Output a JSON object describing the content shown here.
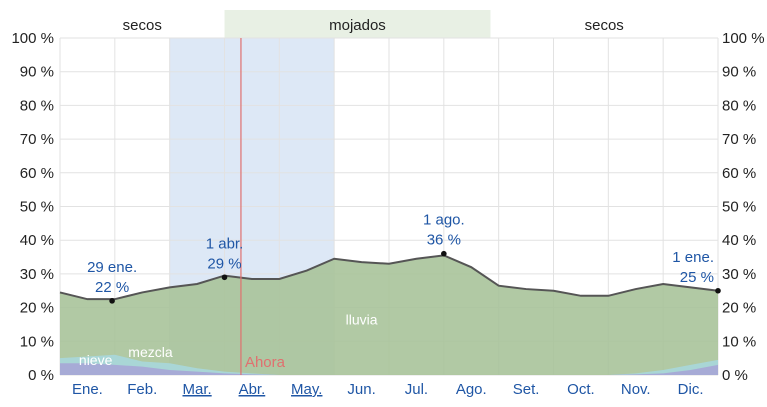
{
  "chart_data": {
    "type": "area",
    "y_unit": "%",
    "ylim": [
      0,
      100
    ],
    "y_ticks": [
      "0 %",
      "10 %",
      "20 %",
      "30 %",
      "40 %",
      "50 %",
      "60 %",
      "70 %",
      "80 %",
      "90 %",
      "100 %"
    ],
    "months": [
      {
        "label": "Ene.",
        "underlined": false
      },
      {
        "label": "Feb.",
        "underlined": false
      },
      {
        "label": "Mar.",
        "underlined": true
      },
      {
        "label": "Abr.",
        "underlined": true
      },
      {
        "label": "May.",
        "underlined": true
      },
      {
        "label": "Jun.",
        "underlined": false
      },
      {
        "label": "Jul.",
        "underlined": false
      },
      {
        "label": "Ago.",
        "underlined": false
      },
      {
        "label": "Set.",
        "underlined": false
      },
      {
        "label": "Oct.",
        "underlined": false
      },
      {
        "label": "Nov.",
        "underlined": false
      },
      {
        "label": "Dic.",
        "underlined": false
      }
    ],
    "seasons": [
      {
        "label": "secos",
        "start_month": 0,
        "end_month": 3.0,
        "type": "dry"
      },
      {
        "label": "mojados",
        "start_month": 3.0,
        "end_month": 7.85,
        "type": "wet"
      },
      {
        "label": "secos",
        "start_month": 7.85,
        "end_month": 12,
        "type": "dry"
      }
    ],
    "highlight_range": [
      2.0,
      5.0
    ],
    "now": {
      "label": "Ahora",
      "month": 3.3
    },
    "x": [
      0,
      0.5,
      1,
      1.5,
      2,
      2.5,
      3,
      3.5,
      4,
      4.5,
      5,
      5.5,
      6,
      6.5,
      7,
      7.5,
      8,
      8.5,
      9,
      9.5,
      10,
      10.5,
      11,
      11.5,
      12
    ],
    "series": [
      {
        "name": "lluvia",
        "color": "#a8c39a",
        "values": [
          24.5,
          22.5,
          22.5,
          24.5,
          26,
          27,
          29.5,
          28.5,
          28.5,
          31,
          34.5,
          33.5,
          33,
          34.5,
          35.5,
          32,
          26.5,
          25.5,
          25,
          23.5,
          23.5,
          25.5,
          27,
          26,
          25
        ]
      },
      {
        "name": "mezcla",
        "color": "#a9d7dc",
        "values": [
          5,
          5.5,
          6,
          4,
          3.5,
          2,
          1,
          0.5,
          0,
          0,
          0,
          0,
          0,
          0,
          0,
          0,
          0,
          0,
          0,
          0,
          0,
          0.5,
          1.5,
          3,
          4.5
        ]
      },
      {
        "name": "nieve",
        "color": "#a6a6d6",
        "values": [
          3.5,
          3.5,
          3,
          2.5,
          1.5,
          1,
          0.5,
          0.2,
          0,
          0,
          0,
          0,
          0,
          0,
          0,
          0,
          0,
          0,
          0,
          0,
          0,
          0.2,
          0.5,
          1.5,
          3
        ]
      }
    ],
    "annotations": [
      {
        "date": "29 ene.",
        "value": "22 %",
        "x": 0.95,
        "y": 22
      },
      {
        "date": "1 abr.",
        "value": "29 %",
        "x": 3.0,
        "y": 29
      },
      {
        "date": "1 ago.",
        "value": "36 %",
        "x": 7.0,
        "y": 36
      },
      {
        "date": "1 ene.",
        "value": "25 %",
        "x": 12.0,
        "y": 25
      }
    ],
    "area_labels": [
      "lluvia",
      "mezcla",
      "nieve"
    ]
  }
}
